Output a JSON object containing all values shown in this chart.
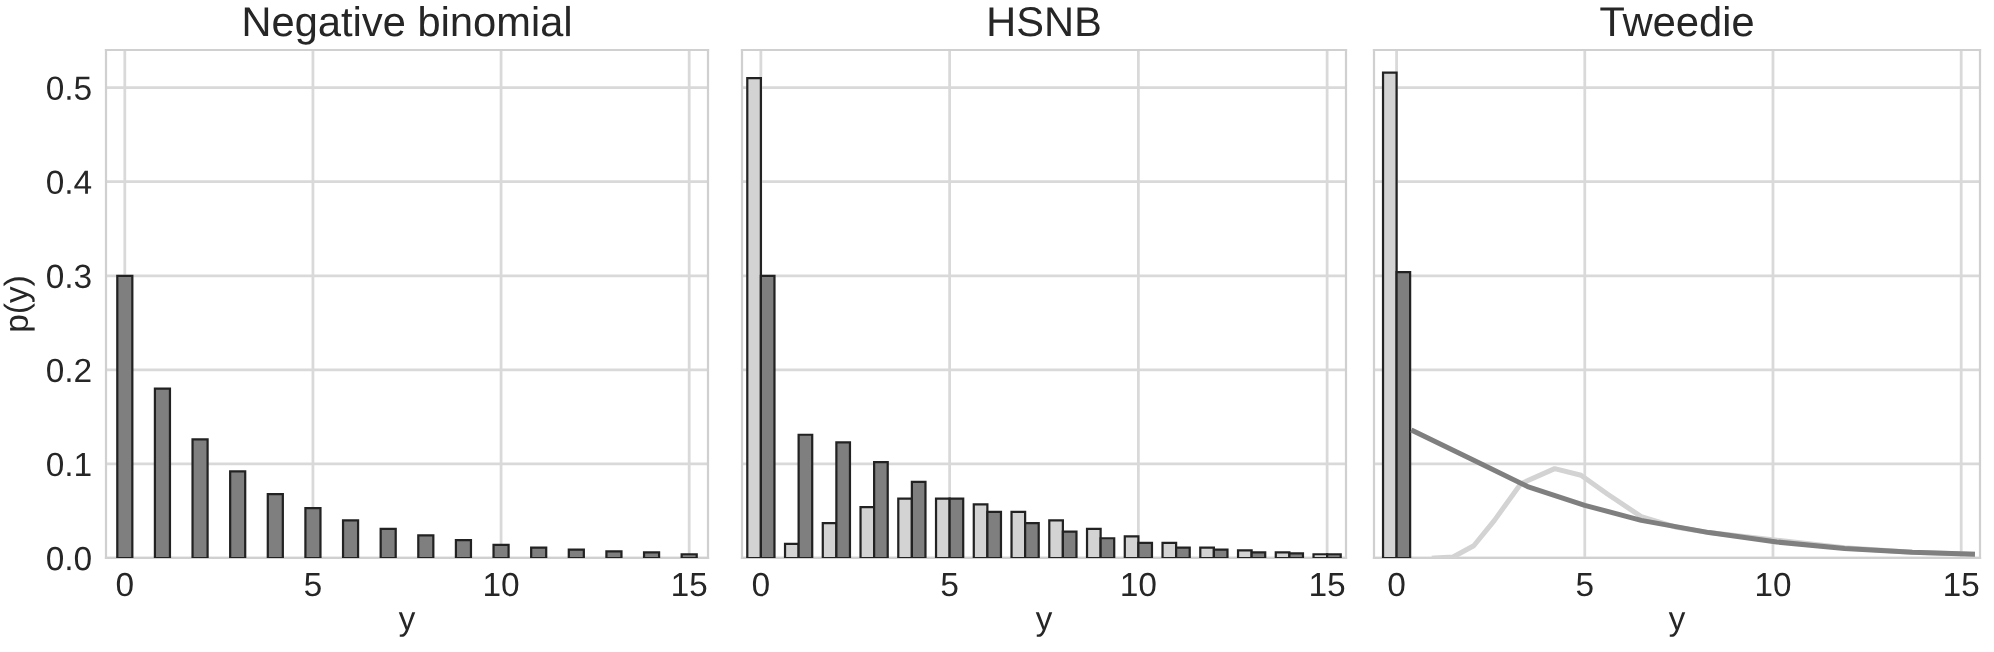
{
  "chart_data": [
    {
      "type": "bar",
      "title": "Negative binomial",
      "xlabel": "y",
      "ylabel": "p(y)",
      "x": [
        0,
        1,
        2,
        3,
        4,
        5,
        6,
        7,
        8,
        9,
        10,
        11,
        12,
        13,
        14,
        15
      ],
      "xlim": [
        -0.5,
        15.5
      ],
      "xticks": [
        0,
        5,
        10,
        15
      ],
      "ylim": [
        0,
        0.54
      ],
      "yticks": [
        {
          "value": 0,
          "label": "0.0"
        },
        0.1,
        0.2,
        0.3,
        0.4,
        0.5
      ],
      "grid": true,
      "series": [
        {
          "color": "#7f7f7f",
          "values": [
            0.3,
            0.18,
            0.126,
            0.092,
            0.068,
            0.053,
            0.04,
            0.031,
            0.024,
            0.019,
            0.014,
            0.011,
            0.009,
            0.007,
            0.006,
            0.004
          ]
        }
      ]
    },
    {
      "type": "bar",
      "title": "HSNB",
      "xlabel": "y",
      "x": [
        0,
        1,
        2,
        3,
        4,
        5,
        6,
        7,
        8,
        9,
        10,
        11,
        12,
        13,
        14,
        15
      ],
      "xlim": [
        -0.5,
        15.5
      ],
      "xticks": [
        0,
        5,
        10,
        15
      ],
      "ylim": [
        0,
        0.54
      ],
      "yticks": [
        0.0,
        0.1,
        0.2,
        0.3,
        0.4,
        0.5
      ],
      "grid": true,
      "tick_labels": "x",
      "series": [
        {
          "color": "#d3d3d3",
          "values": [
            0.51,
            0.015,
            0.037,
            0.054,
            0.063,
            0.063,
            0.057,
            0.049,
            0.04,
            0.031,
            0.023,
            0.016,
            0.011,
            0.008,
            0.006,
            0.004
          ]
        },
        {
          "color": "#7f7f7f",
          "values": [
            0.3,
            0.131,
            0.123,
            0.102,
            0.081,
            0.063,
            0.049,
            0.037,
            0.028,
            0.021,
            0.016,
            0.011,
            0.009,
            0.006,
            0.005,
            0.004
          ]
        }
      ]
    },
    {
      "type": "bar",
      "title": "Tweedie",
      "xlabel": "y",
      "x": [
        0
      ],
      "xlim": [
        -0.6,
        15.5
      ],
      "xticks": [
        0,
        5,
        10,
        15
      ],
      "ylim": [
        0,
        0.54
      ],
      "yticks": [
        0.0,
        0.1,
        0.2,
        0.3,
        0.4,
        0.5
      ],
      "grid": true,
      "tick_labels": "x",
      "series": [
        {
          "color": "#d3d3d3",
          "values": [
            0.516
          ]
        },
        {
          "color": "#7f7f7f",
          "values": [
            0.304
          ]
        },
        {
          "type": "line",
          "color": "#d3d3d3",
          "x": [
            1.0,
            1.5,
            2.05,
            2.6,
            3.3,
            4.2,
            4.9,
            5.6,
            6.5,
            7.4,
            8.3,
            10.1,
            11.9,
            13.7,
            15.3
          ],
          "values": [
            0,
            0.001,
            0.013,
            0.04,
            0.079,
            0.095,
            0.088,
            0.068,
            0.044,
            0.033,
            0.027,
            0.019,
            0.011,
            0.006,
            0.004
          ]
        },
        {
          "type": "line",
          "color": "#7f7f7f",
          "x": [
            0.45,
            2.05,
            3.48,
            5,
            6.5,
            8.3,
            10.1,
            11.9,
            13.7,
            15.3
          ],
          "values": [
            0.135,
            0.104,
            0.076,
            0.056,
            0.04,
            0.027,
            0.017,
            0.01,
            0.006,
            0.004
          ]
        }
      ]
    }
  ]
}
